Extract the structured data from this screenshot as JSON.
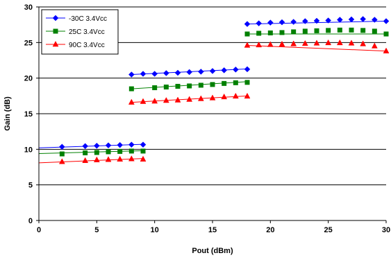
{
  "chart_data": {
    "type": "line",
    "title": "",
    "xlabel": "Pout (dBm)",
    "ylabel": "Gain (dB)",
    "xlim": [
      0,
      30
    ],
    "ylim": [
      0,
      30
    ],
    "xticks": [
      0,
      5,
      10,
      15,
      20,
      25,
      30
    ],
    "yticks": [
      0,
      5,
      10,
      15,
      20,
      25,
      30
    ],
    "grid": "horizontal",
    "legend_position": "top-left",
    "series": [
      {
        "name": "-30C 3.4Vcc",
        "color": "#0000FF",
        "marker": "diamond",
        "segments": [
          {
            "line": [
              [
                0,
                10.2
              ],
              [
                9,
                10.7
              ]
            ],
            "points": [
              [
                2,
                10.35
              ],
              [
                4,
                10.45
              ],
              [
                5,
                10.5
              ],
              [
                6,
                10.55
              ],
              [
                7,
                10.6
              ],
              [
                8,
                10.65
              ],
              [
                9,
                10.65
              ]
            ]
          },
          {
            "line": [
              [
                8,
                20.5
              ],
              [
                18,
                21.3
              ]
            ],
            "points": [
              [
                8,
                20.5
              ],
              [
                9,
                20.6
              ],
              [
                10,
                20.6
              ],
              [
                11,
                20.7
              ],
              [
                12,
                20.75
              ],
              [
                13,
                20.85
              ],
              [
                14,
                20.9
              ],
              [
                15,
                21.0
              ],
              [
                16,
                21.1
              ],
              [
                17,
                21.2
              ],
              [
                18,
                21.25
              ]
            ]
          },
          {
            "line": [
              [
                18,
                27.6
              ],
              [
                30,
                28.0
              ]
            ],
            "points": [
              [
                18,
                27.6
              ],
              [
                19,
                27.7
              ],
              [
                20,
                27.8
              ],
              [
                21,
                27.85
              ],
              [
                22,
                27.9
              ],
              [
                23,
                28.0
              ],
              [
                24,
                28.05
              ],
              [
                25,
                28.1
              ],
              [
                26,
                28.2
              ],
              [
                27,
                28.25
              ],
              [
                28,
                28.3
              ],
              [
                29,
                28.2
              ],
              [
                30,
                28.0
              ]
            ]
          }
        ]
      },
      {
        "name": "25C 3.4Vcc",
        "color": "#008000",
        "marker": "square",
        "segments": [
          {
            "line": [
              [
                0,
                9.4
              ],
              [
                9,
                9.8
              ]
            ],
            "points": [
              [
                2,
                9.35
              ],
              [
                4,
                9.5
              ],
              [
                5,
                9.55
              ],
              [
                6,
                9.65
              ],
              [
                7,
                9.7
              ],
              [
                8,
                9.75
              ],
              [
                9,
                9.75
              ]
            ]
          },
          {
            "line": [
              [
                8,
                18.5
              ],
              [
                18,
                19.5
              ]
            ],
            "points": [
              [
                8,
                18.5
              ],
              [
                10,
                18.65
              ],
              [
                11,
                18.75
              ],
              [
                12,
                18.85
              ],
              [
                13,
                18.9
              ],
              [
                14,
                19.0
              ],
              [
                15,
                19.1
              ],
              [
                16,
                19.25
              ],
              [
                17,
                19.35
              ],
              [
                18,
                19.4
              ]
            ]
          },
          {
            "line": [
              [
                18,
                26.2
              ],
              [
                30,
                26.2
              ]
            ],
            "points": [
              [
                18,
                26.2
              ],
              [
                19,
                26.3
              ],
              [
                20,
                26.35
              ],
              [
                21,
                26.4
              ],
              [
                22,
                26.5
              ],
              [
                23,
                26.6
              ],
              [
                24,
                26.65
              ],
              [
                25,
                26.7
              ],
              [
                26,
                26.75
              ],
              [
                27,
                26.75
              ],
              [
                28,
                26.7
              ],
              [
                29,
                26.6
              ],
              [
                30,
                26.2
              ]
            ]
          }
        ]
      },
      {
        "name": "90C 3.4Vcc",
        "color": "#FF0000",
        "marker": "triangle",
        "segments": [
          {
            "line": [
              [
                0,
                8.1
              ],
              [
                9,
                8.7
              ]
            ],
            "points": [
              [
                2,
                8.25
              ],
              [
                4,
                8.4
              ],
              [
                5,
                8.5
              ],
              [
                6,
                8.55
              ],
              [
                7,
                8.6
              ],
              [
                8,
                8.65
              ],
              [
                9,
                8.6
              ]
            ]
          },
          {
            "line": [
              [
                8,
                16.6
              ],
              [
                18,
                17.5
              ]
            ],
            "points": [
              [
                8,
                16.6
              ],
              [
                9,
                16.7
              ],
              [
                10,
                16.75
              ],
              [
                11,
                16.85
              ],
              [
                12,
                16.9
              ],
              [
                13,
                17.0
              ],
              [
                14,
                17.1
              ],
              [
                15,
                17.2
              ],
              [
                16,
                17.35
              ],
              [
                17,
                17.45
              ],
              [
                18,
                17.45
              ]
            ]
          },
          {
            "line": [
              [
                18,
                24.6
              ],
              [
                30,
                23.8
              ]
            ],
            "points": [
              [
                18,
                24.6
              ],
              [
                19,
                24.65
              ],
              [
                20,
                24.7
              ],
              [
                21,
                24.75
              ],
              [
                22,
                24.8
              ],
              [
                23,
                24.85
              ],
              [
                24,
                24.9
              ],
              [
                25,
                24.95
              ],
              [
                26,
                24.95
              ],
              [
                27,
                24.9
              ],
              [
                28,
                24.8
              ],
              [
                29,
                24.5
              ],
              [
                30,
                23.8
              ]
            ]
          }
        ]
      }
    ]
  }
}
